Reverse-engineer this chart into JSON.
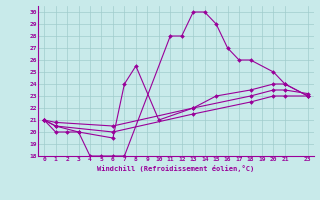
{
  "xlabel": "Windchill (Refroidissement éolien,°C)",
  "xlim": [
    -0.5,
    23.5
  ],
  "ylim": [
    18,
    30.5
  ],
  "yticks": [
    18,
    19,
    20,
    21,
    22,
    23,
    24,
    25,
    26,
    27,
    28,
    29,
    30
  ],
  "xticks": [
    0,
    1,
    2,
    3,
    4,
    5,
    6,
    7,
    8,
    9,
    10,
    11,
    12,
    13,
    14,
    15,
    16,
    17,
    18,
    19,
    20,
    21,
    23
  ],
  "xtick_labels": [
    "0",
    "1",
    "2",
    "3",
    "4",
    "5",
    "6",
    "7",
    "8",
    "9",
    "10",
    "11",
    "12",
    "13",
    "14",
    "15",
    "16",
    "17",
    "18",
    "19",
    "20",
    "21",
    "23"
  ],
  "line_color": "#990099",
  "bg_color": "#c8eaea",
  "grid_color": "#a0cccc",
  "curves": [
    {
      "x": [
        0,
        1,
        2,
        3,
        4,
        5,
        6,
        7,
        11,
        12,
        13,
        14,
        15,
        16,
        17,
        18,
        20,
        21,
        23
      ],
      "y": [
        21,
        20,
        20,
        20,
        18,
        18,
        18,
        18,
        28,
        28,
        30,
        30,
        29,
        27,
        26,
        26,
        25,
        24,
        23
      ]
    },
    {
      "x": [
        0,
        1,
        3,
        6,
        7,
        8,
        10,
        13,
        15,
        18,
        20,
        21,
        23
      ],
      "y": [
        21,
        20.5,
        20,
        19.5,
        24,
        25.5,
        21,
        22,
        23,
        23.5,
        24,
        24,
        23
      ]
    },
    {
      "x": [
        0,
        1,
        6,
        13,
        18,
        20,
        21,
        23
      ],
      "y": [
        21,
        20.5,
        20,
        21.5,
        22.5,
        23,
        23,
        23
      ]
    },
    {
      "x": [
        0,
        1,
        6,
        13,
        18,
        20,
        21,
        23
      ],
      "y": [
        21,
        20.8,
        20.5,
        22,
        23,
        23.5,
        23.5,
        23.2
      ]
    }
  ]
}
